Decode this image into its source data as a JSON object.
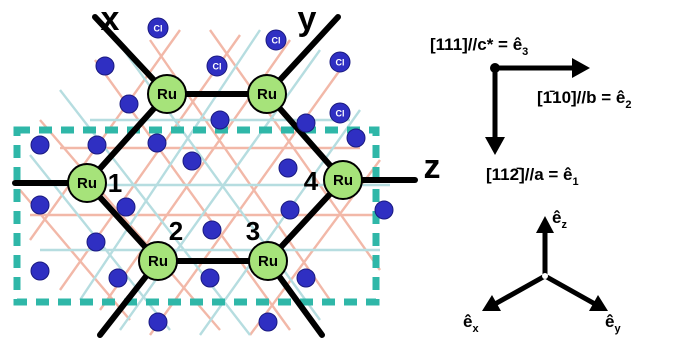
{
  "axis_labels": {
    "x": "x",
    "y": "y",
    "z": "z"
  },
  "ru_label": "Ru",
  "cl_label": "Cl",
  "site_numbers": [
    "1",
    "2",
    "3",
    "4"
  ],
  "directions": {
    "c_star": "[111]//c* = ê",
    "c_star_sub": "3",
    "b": "[1̄10]//b = ê",
    "b_sub": "2",
    "a": "[112̄]//a = ê",
    "a_sub": "1"
  },
  "local_axes": {
    "e": "ê",
    "z_sub": "z",
    "x_sub": "x",
    "y_sub": "y"
  },
  "colors": {
    "ru_fill": "#a6e37a",
    "cl_fill": "#2f2fc2",
    "bond": "#000000",
    "lattice_pink": "#f2b8a8",
    "lattice_blue": "#b6dde0",
    "unit_cell_dashes": "#2fb7a8"
  }
}
